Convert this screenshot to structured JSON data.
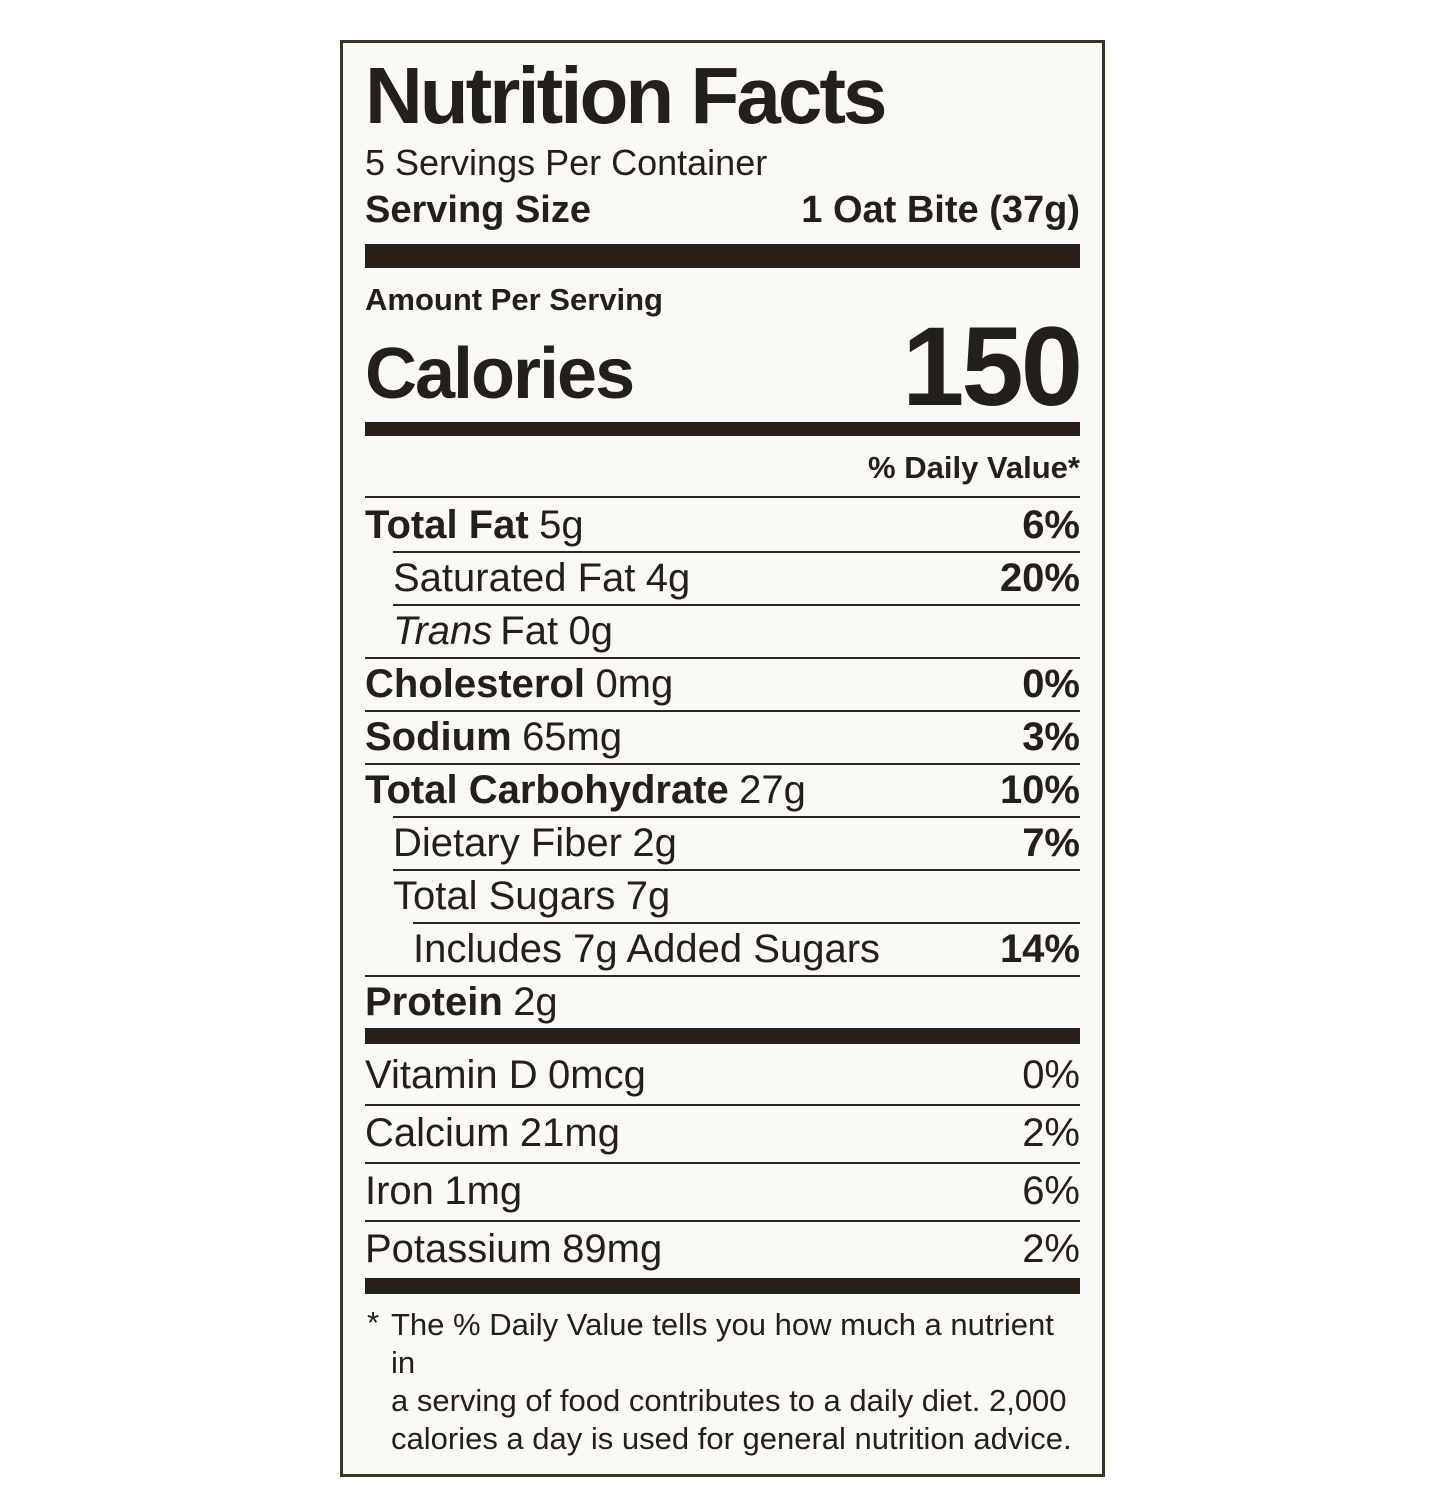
{
  "label": {
    "title": "Nutrition Facts",
    "servings_per_container": "5 Servings Per Container",
    "serving_size": {
      "label": "Serving Size",
      "value": "1 Oat Bite (37g)"
    },
    "amount_per_serving": "Amount Per Serving",
    "calories": {
      "label": "Calories",
      "value": "150"
    },
    "daily_value_header": "% Daily Value*",
    "nutrients": [
      {
        "name": "Total Fat",
        "amount": "5g",
        "dv": "6%"
      },
      {
        "name": "Saturated Fat",
        "amount": "4g",
        "dv": "20%"
      },
      {
        "name": "Trans",
        "name_suffix": "Fat",
        "amount": "0g",
        "dv": ""
      },
      {
        "name": "Cholesterol",
        "amount": "0mg",
        "dv": "0%"
      },
      {
        "name": "Sodium",
        "amount": "65mg",
        "dv": "3%"
      },
      {
        "name": "Total Carbohydrate",
        "amount": "27g",
        "dv": "10%"
      },
      {
        "name": "Dietary Fiber",
        "amount": "2g",
        "dv": "7%"
      },
      {
        "name": "Total Sugars",
        "amount": "7g",
        "dv": ""
      },
      {
        "name": "Includes 7g Added Sugars",
        "amount": "",
        "dv": "14%"
      },
      {
        "name": "Protein",
        "amount": "2g",
        "dv": ""
      }
    ],
    "micronutrients": [
      {
        "name": "Vitamin D",
        "amount": "0mcg",
        "dv": "0%"
      },
      {
        "name": "Calcium",
        "amount": "21mg",
        "dv": "2%"
      },
      {
        "name": "Iron",
        "amount": "1mg",
        "dv": "6%"
      },
      {
        "name": "Potassium",
        "amount": "89mg",
        "dv": "2%"
      }
    ],
    "footnote": {
      "marker": "*",
      "lines": [
        "The % Daily Value tells you how much a nutrient in",
        "a serving of food contributes to a daily diet. 2,000",
        "calories a day is used for general nutrition advice."
      ]
    }
  },
  "colors": {
    "bar": "#272019",
    "text": "#241f1b",
    "label_background": "#faf9f6",
    "label_border": "#3c3322"
  }
}
